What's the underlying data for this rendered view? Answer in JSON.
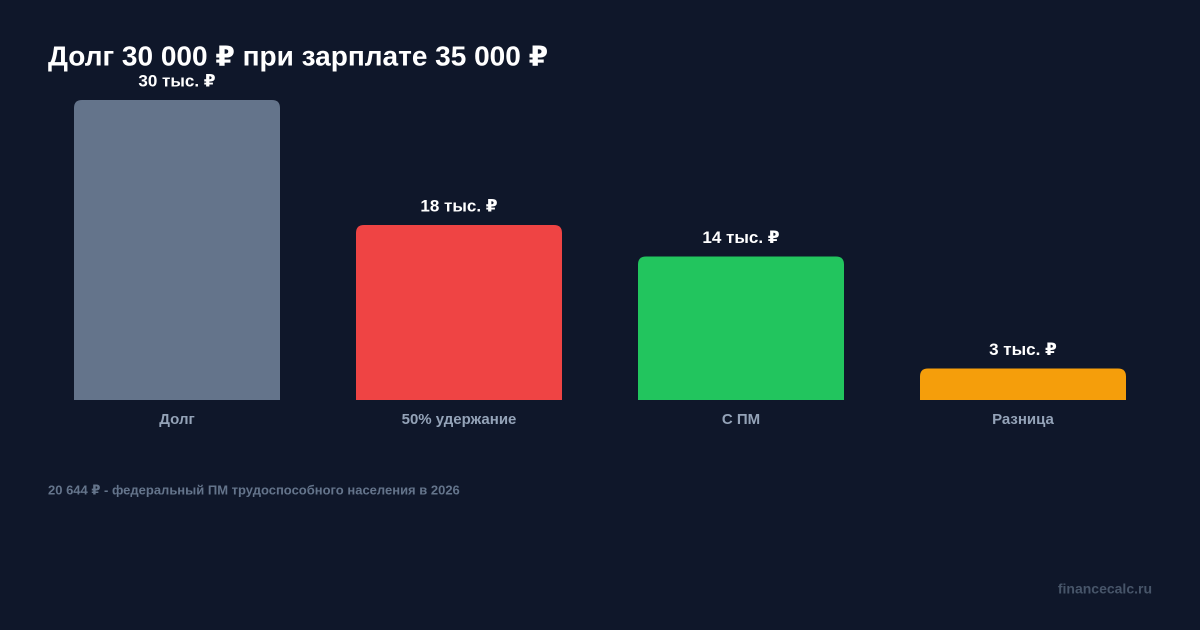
{
  "chart_data": {
    "type": "bar",
    "title": "Долг 30 000 ₽ при зарплате 35 000 ₽",
    "categories": [
      "Долг",
      "50% удержание",
      "С ПМ",
      "Разница"
    ],
    "values": [
      30,
      17.5,
      14.356,
      3.144
    ],
    "value_labels": [
      "30 тыс. ₽",
      "18 тыс. ₽",
      "14 тыс. ₽",
      "3 тыс. ₽"
    ],
    "colors": [
      "#64748b",
      "#ef4444",
      "#22c55e",
      "#f59e0b"
    ],
    "footnote": "20 644 ₽ - федеральный ПМ трудоспособного населения в 2026",
    "watermark": "financecalc.ru"
  }
}
